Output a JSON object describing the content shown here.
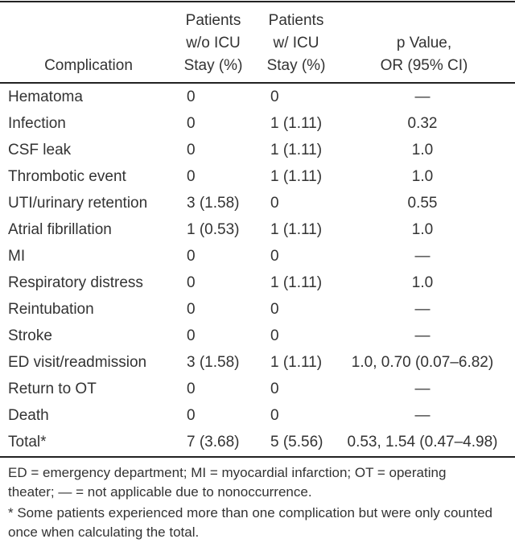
{
  "table": {
    "header": [
      [
        "Complication"
      ],
      [
        "Patients",
        "w/o ICU",
        "Stay (%)"
      ],
      [
        "Patients",
        "w/ ICU",
        "Stay (%)"
      ],
      [
        "p Value,",
        "OR (95% CI)"
      ]
    ],
    "rows": [
      [
        "Hematoma",
        "0",
        "0",
        "—"
      ],
      [
        "Infection",
        "0",
        "1 (1.11)",
        "0.32"
      ],
      [
        "CSF leak",
        "0",
        "1 (1.11)",
        "1.0"
      ],
      [
        "Thrombotic event",
        "0",
        "1 (1.11)",
        "1.0"
      ],
      [
        "UTI/urinary retention",
        "3 (1.58)",
        "0",
        "0.55"
      ],
      [
        "Atrial fibrillation",
        "1 (0.53)",
        "1 (1.11)",
        "1.0"
      ],
      [
        "MI",
        "0",
        "0",
        "—"
      ],
      [
        "Respiratory distress",
        "0",
        "1 (1.11)",
        "1.0"
      ],
      [
        "Reintubation",
        "0",
        "0",
        "—"
      ],
      [
        "Stroke",
        "0",
        "0",
        "—"
      ],
      [
        "ED visit/readmission",
        "3 (1.58)",
        "1 (1.11)",
        "1.0, 0.70 (0.07–6.82)"
      ],
      [
        "Return to OT",
        "0",
        "0",
        "—"
      ],
      [
        "Death",
        "0",
        "0",
        "—"
      ],
      [
        "Total*",
        "7 (3.68)",
        "5 (5.56)",
        "0.53, 1.54 (0.47–4.98)"
      ]
    ],
    "notes": [
      "ED = emergency department; MI = myocardial infarction; OT = operating theater; — = not applicable due to nonoccurrence.",
      "*  Some patients experienced more than one complication but were only counted once when calculating the total."
    ]
  }
}
